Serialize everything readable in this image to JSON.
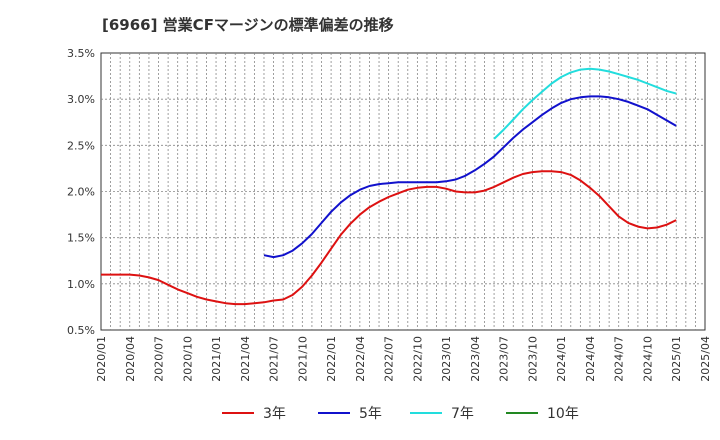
{
  "title": "[6966]  営業CFマージンの標準偏差の推移",
  "chart_data": {
    "type": "line",
    "title": "[6966]  営業CFマージンの標準偏差の推移",
    "xlabel": "",
    "ylabel": "",
    "x_ticks": [
      "2020/01",
      "2020/04",
      "2020/07",
      "2020/10",
      "2021/01",
      "2021/04",
      "2021/07",
      "2021/10",
      "2022/01",
      "2022/04",
      "2022/07",
      "2022/10",
      "2023/01",
      "2023/04",
      "2023/07",
      "2023/10",
      "2024/01",
      "2024/04",
      "2024/07",
      "2024/10",
      "2025/01",
      "2025/04"
    ],
    "y_ticks": [
      "0.5%",
      "1.0%",
      "1.5%",
      "2.0%",
      "2.5%",
      "3.0%",
      "3.5%"
    ],
    "ylim": [
      0.5,
      3.5
    ],
    "grid": true,
    "legend_position": "bottom",
    "series": [
      {
        "name": "3年",
        "color": "#dd1111",
        "points": [
          [
            "2020/01",
            1.1
          ],
          [
            "2020/02",
            1.1
          ],
          [
            "2020/03",
            1.1
          ],
          [
            "2020/04",
            1.1
          ],
          [
            "2020/05",
            1.09
          ],
          [
            "2020/06",
            1.07
          ],
          [
            "2020/07",
            1.04
          ],
          [
            "2020/08",
            0.99
          ],
          [
            "2020/09",
            0.94
          ],
          [
            "2020/10",
            0.9
          ],
          [
            "2020/11",
            0.86
          ],
          [
            "2020/12",
            0.83
          ],
          [
            "2021/01",
            0.81
          ],
          [
            "2021/02",
            0.79
          ],
          [
            "2021/03",
            0.78
          ],
          [
            "2021/04",
            0.78
          ],
          [
            "2021/05",
            0.79
          ],
          [
            "2021/06",
            0.8
          ],
          [
            "2021/07",
            0.82
          ],
          [
            "2021/08",
            0.83
          ],
          [
            "2021/09",
            0.88
          ],
          [
            "2021/10",
            0.97
          ],
          [
            "2021/11",
            1.09
          ],
          [
            "2021/12",
            1.23
          ],
          [
            "2022/01",
            1.38
          ],
          [
            "2022/02",
            1.53
          ],
          [
            "2022/03",
            1.65
          ],
          [
            "2022/04",
            1.75
          ],
          [
            "2022/05",
            1.83
          ],
          [
            "2022/06",
            1.89
          ],
          [
            "2022/07",
            1.94
          ],
          [
            "2022/08",
            1.98
          ],
          [
            "2022/09",
            2.02
          ],
          [
            "2022/10",
            2.04
          ],
          [
            "2022/11",
            2.05
          ],
          [
            "2022/12",
            2.05
          ],
          [
            "2023/01",
            2.03
          ],
          [
            "2023/02",
            2.0
          ],
          [
            "2023/03",
            1.99
          ],
          [
            "2023/04",
            1.99
          ],
          [
            "2023/05",
            2.01
          ],
          [
            "2023/06",
            2.05
          ],
          [
            "2023/07",
            2.1
          ],
          [
            "2023/08",
            2.15
          ],
          [
            "2023/09",
            2.19
          ],
          [
            "2023/10",
            2.21
          ],
          [
            "2023/11",
            2.22
          ],
          [
            "2023/12",
            2.22
          ],
          [
            "2024/01",
            2.21
          ],
          [
            "2024/02",
            2.18
          ],
          [
            "2024/03",
            2.12
          ],
          [
            "2024/04",
            2.04
          ],
          [
            "2024/05",
            1.95
          ],
          [
            "2024/06",
            1.84
          ],
          [
            "2024/07",
            1.73
          ],
          [
            "2024/08",
            1.66
          ],
          [
            "2024/09",
            1.62
          ],
          [
            "2024/10",
            1.6
          ],
          [
            "2024/11",
            1.61
          ],
          [
            "2024/12",
            1.64
          ],
          [
            "2025/01",
            1.69
          ]
        ]
      },
      {
        "name": "5年",
        "color": "#1111cc",
        "points": [
          [
            "2021/06",
            1.31
          ],
          [
            "2021/07",
            1.29
          ],
          [
            "2021/08",
            1.31
          ],
          [
            "2021/09",
            1.36
          ],
          [
            "2021/10",
            1.44
          ],
          [
            "2021/11",
            1.54
          ],
          [
            "2021/12",
            1.66
          ],
          [
            "2022/01",
            1.78
          ],
          [
            "2022/02",
            1.88
          ],
          [
            "2022/03",
            1.96
          ],
          [
            "2022/04",
            2.02
          ],
          [
            "2022/05",
            2.06
          ],
          [
            "2022/06",
            2.08
          ],
          [
            "2022/07",
            2.09
          ],
          [
            "2022/08",
            2.1
          ],
          [
            "2022/09",
            2.1
          ],
          [
            "2022/10",
            2.1
          ],
          [
            "2022/11",
            2.1
          ],
          [
            "2022/12",
            2.1
          ],
          [
            "2023/01",
            2.11
          ],
          [
            "2023/02",
            2.13
          ],
          [
            "2023/03",
            2.17
          ],
          [
            "2023/04",
            2.23
          ],
          [
            "2023/05",
            2.3
          ],
          [
            "2023/06",
            2.38
          ],
          [
            "2023/07",
            2.48
          ],
          [
            "2023/08",
            2.58
          ],
          [
            "2023/09",
            2.67
          ],
          [
            "2023/10",
            2.75
          ],
          [
            "2023/11",
            2.83
          ],
          [
            "2023/12",
            2.9
          ],
          [
            "2024/01",
            2.96
          ],
          [
            "2024/02",
            3.0
          ],
          [
            "2024/03",
            3.02
          ],
          [
            "2024/04",
            3.03
          ],
          [
            "2024/05",
            3.03
          ],
          [
            "2024/06",
            3.02
          ],
          [
            "2024/07",
            3.0
          ],
          [
            "2024/08",
            2.97
          ],
          [
            "2024/09",
            2.93
          ],
          [
            "2024/10",
            2.89
          ],
          [
            "2024/11",
            2.83
          ],
          [
            "2024/12",
            2.77
          ],
          [
            "2025/01",
            2.71
          ]
        ]
      },
      {
        "name": "7年",
        "color": "#22dddd",
        "points": [
          [
            "2023/06",
            2.57
          ],
          [
            "2023/07",
            2.67
          ],
          [
            "2023/08",
            2.78
          ],
          [
            "2023/09",
            2.89
          ],
          [
            "2023/10",
            2.99
          ],
          [
            "2023/11",
            3.08
          ],
          [
            "2023/12",
            3.17
          ],
          [
            "2024/01",
            3.24
          ],
          [
            "2024/02",
            3.29
          ],
          [
            "2024/03",
            3.32
          ],
          [
            "2024/04",
            3.33
          ],
          [
            "2024/05",
            3.32
          ],
          [
            "2024/06",
            3.3
          ],
          [
            "2024/07",
            3.27
          ],
          [
            "2024/08",
            3.24
          ],
          [
            "2024/09",
            3.21
          ],
          [
            "2024/10",
            3.17
          ],
          [
            "2024/11",
            3.13
          ],
          [
            "2024/12",
            3.09
          ],
          [
            "2025/01",
            3.06
          ]
        ]
      },
      {
        "name": "10年",
        "color": "#228822",
        "points": []
      }
    ]
  }
}
